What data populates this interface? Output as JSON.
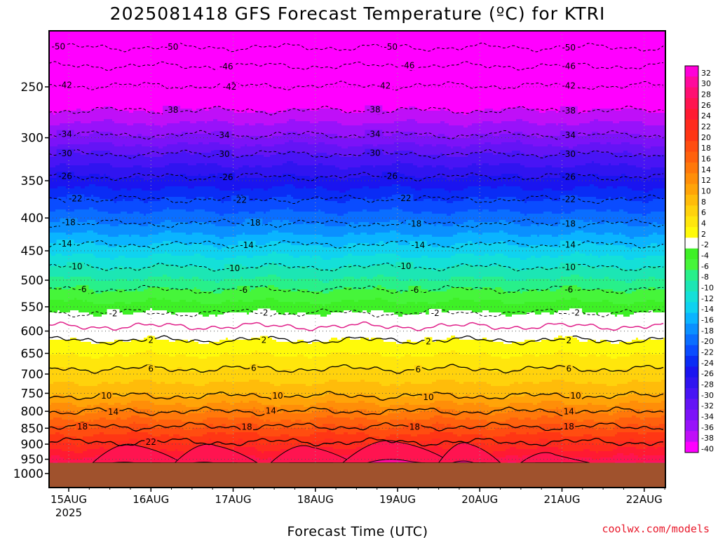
{
  "chart_data": {
    "type": "heatmap",
    "title": "2025081418 GFS Forecast Temperature (ºC) for KTRI",
    "xlabel": "Forecast Time (UTC)",
    "ylabel": "",
    "credit": "coolwx.com/models",
    "y_scale": "log-pressure (inverted)",
    "y_units": "hPa",
    "ylim": [
      1000,
      200
    ],
    "y_ticks": [
      250,
      300,
      350,
      400,
      450,
      500,
      550,
      600,
      650,
      700,
      750,
      800,
      850,
      900,
      950,
      1000
    ],
    "x_ticks": [
      {
        "label": "15AUG",
        "sub": "2025",
        "hour": 6
      },
      {
        "label": "16AUG",
        "sub": "",
        "hour": 30
      },
      {
        "label": "17AUG",
        "sub": "",
        "hour": 54
      },
      {
        "label": "18AUG",
        "sub": "",
        "hour": 78
      },
      {
        "label": "19AUG",
        "sub": "",
        "hour": 102
      },
      {
        "label": "20AUG",
        "sub": "",
        "hour": 126
      },
      {
        "label": "21AUG",
        "sub": "",
        "hour": 150
      },
      {
        "label": "22AUG",
        "sub": "",
        "hour": 174
      }
    ],
    "xlim_hours": [
      0,
      180
    ],
    "ground_level_hpa": 962,
    "grid": true,
    "colorbar": {
      "position": "right",
      "levels": [
        32,
        30,
        28,
        26,
        24,
        22,
        20,
        18,
        16,
        14,
        12,
        10,
        8,
        6,
        4,
        2,
        -2,
        -4,
        -6,
        -8,
        -10,
        -12,
        -14,
        -16,
        -18,
        -20,
        -22,
        -24,
        -26,
        -28,
        -30,
        -32,
        -34,
        -36,
        -38,
        -40
      ],
      "colors": [
        "#ff00d8",
        "#ff0a9c",
        "#ff0f72",
        "#ff1450",
        "#ff1a32",
        "#ff2b1e",
        "#ff3614",
        "#ff4d10",
        "#ff610d",
        "#ff780a",
        "#ff8e08",
        "#ffa408",
        "#ffbc0a",
        "#ffd20c",
        "#ffe60c",
        "#fffa0a",
        "#ffffff",
        "#3ef026",
        "#46f53a",
        "#28f08a",
        "#1ce6b4",
        "#14e0d8",
        "#0fd2f0",
        "#0ab4ff",
        "#0a90ff",
        "#0a6eff",
        "#0a4cff",
        "#0a2cf5",
        "#1a14f0",
        "#3014f0",
        "#4814f5",
        "#6414f5",
        "#7c12f8",
        "#9812fa",
        "#c00ff8",
        "#ff00ff"
      ]
    },
    "contour_levels_dashed": [
      -50,
      -46,
      -42,
      -38,
      -34,
      -30,
      -26,
      -22,
      -18,
      -14,
      -10,
      -6,
      -2
    ],
    "contour_levels_solid": [
      2,
      6,
      10,
      14,
      18,
      22
    ],
    "freezing_line_color": "#e0208a",
    "isotherm_pressure_hpa": [
      {
        "t": -50,
        "p": 217
      },
      {
        "t": -46,
        "p": 232
      },
      {
        "t": -42,
        "p": 249
      },
      {
        "t": -38,
        "p": 272
      },
      {
        "t": -34,
        "p": 297
      },
      {
        "t": -30,
        "p": 318
      },
      {
        "t": -26,
        "p": 345
      },
      {
        "t": -22,
        "p": 374
      },
      {
        "t": -18,
        "p": 408
      },
      {
        "t": -14,
        "p": 440
      },
      {
        "t": -10,
        "p": 477
      },
      {
        "t": -6,
        "p": 517
      },
      {
        "t": -2,
        "p": 562
      },
      {
        "t": 0,
        "p": 590
      },
      {
        "t": 2,
        "p": 620
      },
      {
        "t": 6,
        "p": 687
      },
      {
        "t": 10,
        "p": 757
      },
      {
        "t": 14,
        "p": 800
      },
      {
        "t": 18,
        "p": 845
      },
      {
        "t": 22,
        "p": 893
      }
    ],
    "contour_labels": [
      {
        "text": "-50",
        "hour": 3,
        "t": -50
      },
      {
        "text": "-50",
        "hour": 36,
        "t": -50
      },
      {
        "text": "-50",
        "hour": 100,
        "t": -50
      },
      {
        "text": "-50",
        "hour": 152,
        "t": -50
      },
      {
        "text": "-46",
        "hour": 52,
        "t": -46
      },
      {
        "text": "-46",
        "hour": 105,
        "t": -46
      },
      {
        "text": "-46",
        "hour": 152,
        "t": -46
      },
      {
        "text": "-42",
        "hour": 5,
        "t": -42
      },
      {
        "text": "-42",
        "hour": 53,
        "t": -42
      },
      {
        "text": "-42",
        "hour": 98,
        "t": -42
      },
      {
        "text": "-42",
        "hour": 152,
        "t": -42
      },
      {
        "text": "-38",
        "hour": 36,
        "t": -38
      },
      {
        "text": "-38",
        "hour": 95,
        "t": -38
      },
      {
        "text": "-38",
        "hour": 152,
        "t": -38
      },
      {
        "text": "-34",
        "hour": 5,
        "t": -34
      },
      {
        "text": "-34",
        "hour": 51,
        "t": -34
      },
      {
        "text": "-34",
        "hour": 95,
        "t": -34
      },
      {
        "text": "-34",
        "hour": 152,
        "t": -34
      },
      {
        "text": "-30",
        "hour": 5,
        "t": -30
      },
      {
        "text": "-30",
        "hour": 51,
        "t": -30
      },
      {
        "text": "-30",
        "hour": 95,
        "t": -30
      },
      {
        "text": "-30",
        "hour": 152,
        "t": -30
      },
      {
        "text": "-26",
        "hour": 5,
        "t": -26
      },
      {
        "text": "-26",
        "hour": 52,
        "t": -26
      },
      {
        "text": "-26",
        "hour": 100,
        "t": -26
      },
      {
        "text": "-26",
        "hour": 152,
        "t": -26
      },
      {
        "text": "-22",
        "hour": 8,
        "t": -22
      },
      {
        "text": "-22",
        "hour": 56,
        "t": -22
      },
      {
        "text": "-22",
        "hour": 104,
        "t": -22
      },
      {
        "text": "-22",
        "hour": 152,
        "t": -22
      },
      {
        "text": "-18",
        "hour": 6,
        "t": -18
      },
      {
        "text": "-18",
        "hour": 60,
        "t": -18
      },
      {
        "text": "-18",
        "hour": 107,
        "t": -18
      },
      {
        "text": "-18",
        "hour": 152,
        "t": -18
      },
      {
        "text": "-14",
        "hour": 5,
        "t": -14
      },
      {
        "text": "-14",
        "hour": 58,
        "t": -14
      },
      {
        "text": "-14",
        "hour": 108,
        "t": -14
      },
      {
        "text": "-14",
        "hour": 152,
        "t": -14
      },
      {
        "text": "-10",
        "hour": 8,
        "t": -10
      },
      {
        "text": "-10",
        "hour": 54,
        "t": -10
      },
      {
        "text": "-10",
        "hour": 104,
        "t": -10
      },
      {
        "text": "-10",
        "hour": 152,
        "t": -10
      },
      {
        "text": "-6",
        "hour": 10,
        "t": -6
      },
      {
        "text": "-6",
        "hour": 57,
        "t": -6
      },
      {
        "text": "-6",
        "hour": 107,
        "t": -6
      },
      {
        "text": "-6",
        "hour": 152,
        "t": -6
      },
      {
        "text": "-2",
        "hour": 19,
        "t": -2
      },
      {
        "text": "-2",
        "hour": 63,
        "t": -2
      },
      {
        "text": "-2",
        "hour": 113,
        "t": -2
      },
      {
        "text": "-2",
        "hour": 154,
        "t": -2
      },
      {
        "text": "2",
        "hour": 30,
        "t": 2
      },
      {
        "text": "2",
        "hour": 63,
        "t": 2
      },
      {
        "text": "2",
        "hour": 111,
        "t": 2
      },
      {
        "text": "2",
        "hour": 152,
        "t": 2
      },
      {
        "text": "6",
        "hour": 30,
        "t": 6
      },
      {
        "text": "6",
        "hour": 60,
        "t": 6
      },
      {
        "text": "6",
        "hour": 108,
        "t": 6
      },
      {
        "text": "6",
        "hour": 152,
        "t": 6
      },
      {
        "text": "10",
        "hour": 17,
        "t": 10
      },
      {
        "text": "10",
        "hour": 67,
        "t": 10
      },
      {
        "text": "10",
        "hour": 111,
        "t": 10
      },
      {
        "text": "10",
        "hour": 154,
        "t": 10
      },
      {
        "text": "14",
        "hour": 19,
        "t": 14
      },
      {
        "text": "14",
        "hour": 65,
        "t": 14
      },
      {
        "text": "14",
        "hour": 152,
        "t": 14
      },
      {
        "text": "18",
        "hour": 10,
        "t": 18
      },
      {
        "text": "18",
        "hour": 58,
        "t": 18
      },
      {
        "text": "18",
        "hour": 107,
        "t": 18
      },
      {
        "text": "18",
        "hour": 152,
        "t": 18
      },
      {
        "text": "22",
        "hour": 30,
        "t": 22
      }
    ],
    "warm_pockets": [
      {
        "hour": 26,
        "p_top": 905,
        "halfwidth": 13
      },
      {
        "hour": 49,
        "p_top": 905,
        "halfwidth": 12
      },
      {
        "hour": 77,
        "p_top": 910,
        "halfwidth": 12
      },
      {
        "hour": 102,
        "p_top": 893,
        "halfwidth": 16
      },
      {
        "hour": 123,
        "p_top": 900,
        "halfwidth": 9
      },
      {
        "hour": 148,
        "p_top": 935,
        "halfwidth": 10
      }
    ]
  }
}
